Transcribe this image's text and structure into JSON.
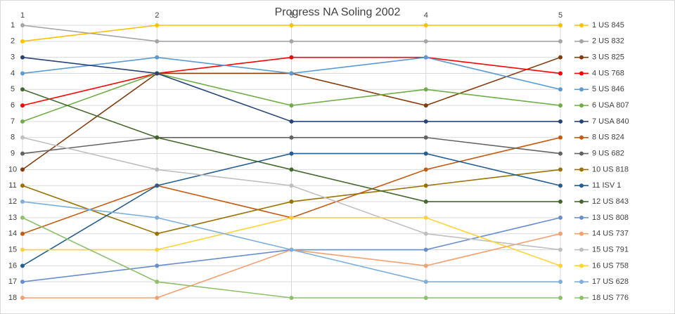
{
  "chart_data": {
    "type": "line",
    "title": "Progress NA Soling 2002",
    "x": [
      1,
      2,
      3,
      4,
      5
    ],
    "xlim": [
      1,
      5
    ],
    "xticks": [
      1,
      2,
      3,
      4,
      5
    ],
    "ylim": [
      18,
      1
    ],
    "yticks": [
      1,
      2,
      3,
      4,
      5,
      6,
      7,
      8,
      9,
      10,
      11,
      12,
      13,
      14,
      15,
      16,
      17,
      18
    ],
    "grid": true,
    "legend": "right",
    "series": [
      {
        "name": "1 US 845",
        "color": "#ffc000",
        "values": [
          2,
          1,
          1,
          1,
          1
        ]
      },
      {
        "name": "2 US 832",
        "color": "#a5a5a5",
        "values": [
          1,
          2,
          2,
          2,
          2
        ]
      },
      {
        "name": "3 US 825",
        "color": "#843c0c",
        "values": [
          10,
          4,
          4,
          6,
          3
        ]
      },
      {
        "name": "4 US 768",
        "color": "#ff0000",
        "values": [
          6,
          4,
          3,
          3,
          4
        ]
      },
      {
        "name": "5 US 846",
        "color": "#5b9bd5",
        "values": [
          4,
          3,
          4,
          3,
          5
        ]
      },
      {
        "name": "6 USA 807",
        "color": "#70ad47",
        "values": [
          7,
          4,
          6,
          5,
          6
        ]
      },
      {
        "name": "7 USA 840",
        "color": "#264478",
        "values": [
          3,
          4,
          7,
          7,
          7
        ]
      },
      {
        "name": "8 US 824",
        "color": "#c55a11",
        "values": [
          14,
          11,
          13,
          10,
          8
        ]
      },
      {
        "name": "9 US 682",
        "color": "#636363",
        "values": [
          9,
          8,
          8,
          8,
          9
        ]
      },
      {
        "name": "10 US 818",
        "color": "#997300",
        "values": [
          11,
          14,
          12,
          11,
          10
        ]
      },
      {
        "name": "11 ISV 1",
        "color": "#255e91",
        "values": [
          16,
          11,
          9,
          9,
          11
        ]
      },
      {
        "name": "12 US 843",
        "color": "#43682b",
        "values": [
          5,
          8,
          10,
          12,
          12
        ]
      },
      {
        "name": "13 US 808",
        "color": "#698ed0",
        "values": [
          17,
          16,
          15,
          15,
          13
        ]
      },
      {
        "name": "14 US 737",
        "color": "#f4a070",
        "values": [
          18,
          18,
          15,
          16,
          14
        ]
      },
      {
        "name": "15 US 791",
        "color": "#bfbfbf",
        "values": [
          8,
          10,
          11,
          14,
          15
        ]
      },
      {
        "name": "16 US 758",
        "color": "#ffd234",
        "values": [
          15,
          15,
          13,
          13,
          16
        ]
      },
      {
        "name": "17 US 628",
        "color": "#7cafdd",
        "values": [
          12,
          13,
          15,
          17,
          17
        ]
      },
      {
        "name": "18 US 776",
        "color": "#8cc168",
        "values": [
          13,
          17,
          18,
          18,
          18
        ]
      }
    ]
  }
}
